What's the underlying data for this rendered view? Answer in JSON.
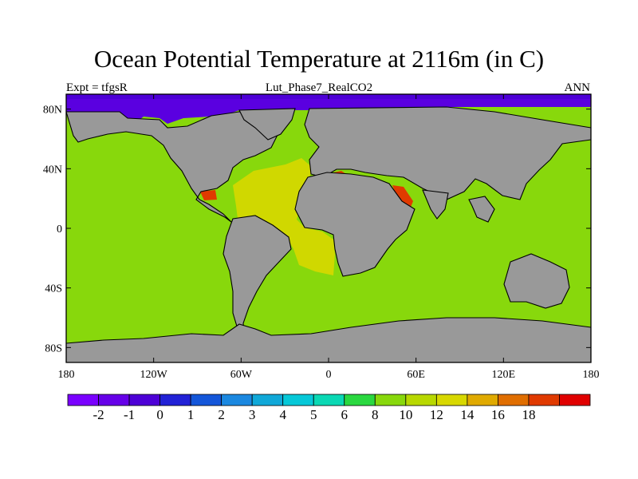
{
  "title": "Ocean Potential Temperature at 2116m (in C)",
  "subtitle_left": "Expt = tfgsR",
  "subtitle_center": "Lut_Phase7_RealCO2",
  "subtitle_right": "ANN",
  "map": {
    "projection": "cylindrical equidistant",
    "lon_range": [
      -180,
      180
    ],
    "lat_range": [
      -90,
      90
    ],
    "lon_ticks": [
      {
        "value": -180,
        "label": "180"
      },
      {
        "value": -120,
        "label": "120W"
      },
      {
        "value": -60,
        "label": "60W"
      },
      {
        "value": 0,
        "label": "0"
      },
      {
        "value": 60,
        "label": "60E"
      },
      {
        "value": 120,
        "label": "120E"
      },
      {
        "value": 180,
        "label": "180"
      }
    ],
    "lat_ticks": [
      {
        "value": 80,
        "label": "80N"
      },
      {
        "value": 40,
        "label": "40N"
      },
      {
        "value": 0,
        "label": "0"
      },
      {
        "value": -40,
        "label": "40S"
      },
      {
        "value": -80,
        "label": "80S"
      }
    ],
    "land_color": "#999999",
    "dominant_ocean_value": 9,
    "notable_regions": [
      {
        "region": "Arctic Ocean",
        "value": -2
      },
      {
        "region": "North and equatorial Atlantic",
        "value": 11
      },
      {
        "region": "Mediterranean outflow",
        "value": 16
      },
      {
        "region": "Gulf of Mexico",
        "value": 16
      },
      {
        "region": "Red Sea / Arabian Sea",
        "value": 16
      }
    ]
  },
  "colorbar": {
    "colors": [
      "#7a00ff",
      "#6600e8",
      "#4d00d6",
      "#2222d6",
      "#1456d9",
      "#1b88e0",
      "#10a8d8",
      "#06c8d8",
      "#0ad8b4",
      "#2ad840",
      "#88d80c",
      "#b8d800",
      "#d8d800",
      "#e0aa00",
      "#e06e00",
      "#e03a00",
      "#e00000"
    ],
    "labels": [
      "-2",
      "-1",
      "0",
      "1",
      "2",
      "3",
      "4",
      "5",
      "6",
      "8",
      "10",
      "12",
      "14",
      "16",
      "18"
    ]
  }
}
